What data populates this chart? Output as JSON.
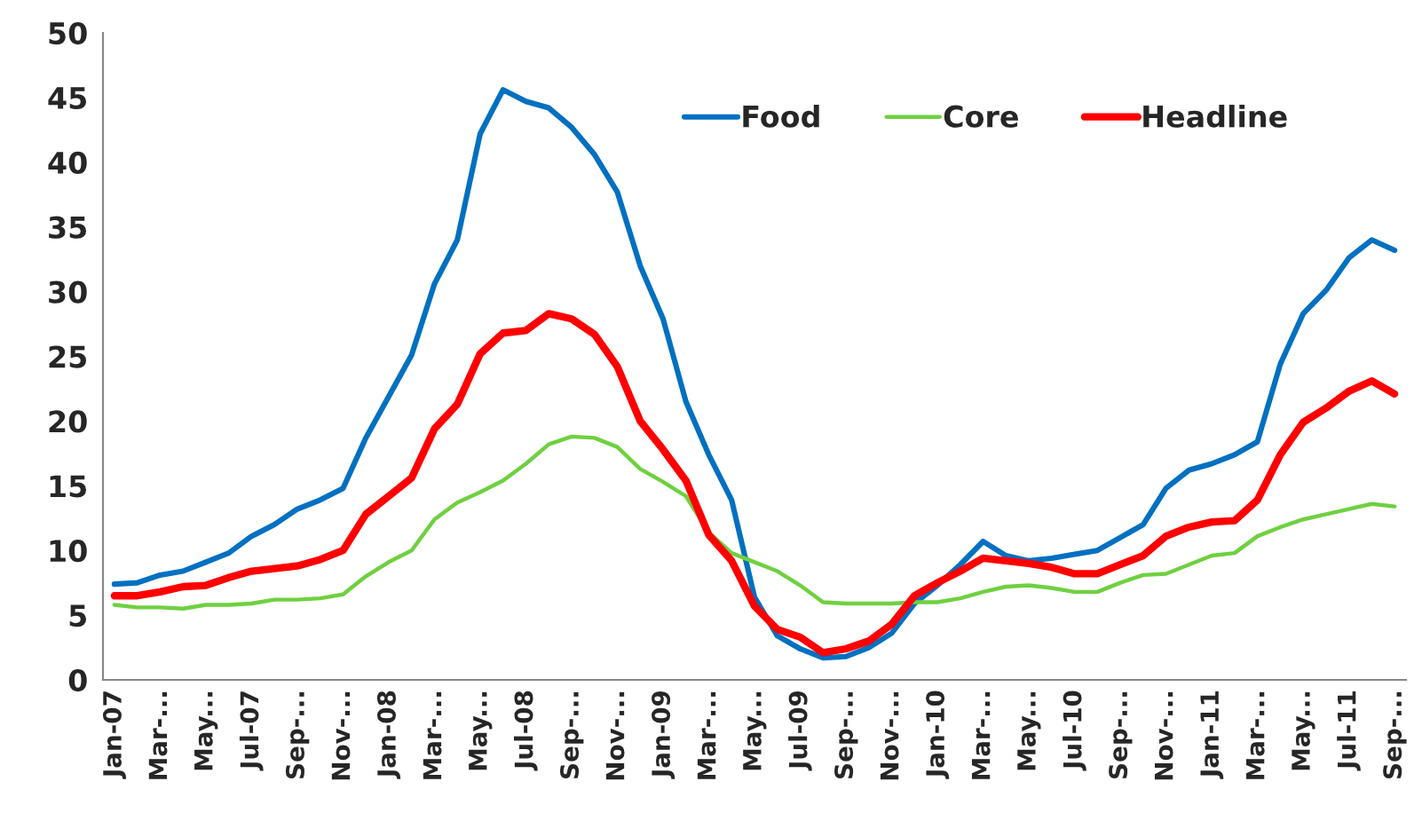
{
  "chart_data": {
    "type": "line",
    "categories": [
      "Jan-07",
      null,
      "Mar-...",
      null,
      "May...",
      null,
      "Jul-07",
      null,
      "Sep-...",
      null,
      "Nov-...",
      null,
      "Jan-08",
      null,
      "Mar-...",
      null,
      "May...",
      null,
      "Jul-08",
      null,
      "Sep-...",
      null,
      "Nov-...",
      null,
      "Jan-09",
      null,
      "Mar-...",
      null,
      "May...",
      null,
      "Jul-09",
      null,
      "Sep-...",
      null,
      "Nov-...",
      null,
      "Jan-10",
      null,
      "Mar-...",
      null,
      "May...",
      null,
      "Jul-10",
      null,
      "Sep-...",
      null,
      "Nov-...",
      null,
      "Jan-11",
      null,
      "Mar-...",
      null,
      "May...",
      null,
      "Jul-11",
      null,
      "Sep-..."
    ],
    "series": [
      {
        "name": "Food",
        "color": "#0070c0",
        "values": [
          7.4,
          7.5,
          8.1,
          8.4,
          9.1,
          9.8,
          11.1,
          12.0,
          13.2,
          13.9,
          14.8,
          18.7,
          21.9,
          25.1,
          30.6,
          34.0,
          42.2,
          45.6,
          44.7,
          44.2,
          42.7,
          40.6,
          37.7,
          32.0,
          27.9,
          21.5,
          17.4,
          13.9,
          6.4,
          3.4,
          2.4,
          1.7,
          1.8,
          2.5,
          3.6,
          5.9,
          7.3,
          8.9,
          10.7,
          9.6,
          9.2,
          9.4,
          9.7,
          10.0,
          11.0,
          12.0,
          14.8,
          16.2,
          16.7,
          17.4,
          18.4,
          24.4,
          28.3,
          30.1,
          32.6,
          34.0,
          33.2
        ]
      },
      {
        "name": "Core",
        "color": "#6fd040",
        "values": [
          5.8,
          5.6,
          5.6,
          5.5,
          5.8,
          5.8,
          5.9,
          6.2,
          6.2,
          6.3,
          6.6,
          8.0,
          9.1,
          10.0,
          12.4,
          13.7,
          14.5,
          15.4,
          16.7,
          18.2,
          18.8,
          18.7,
          18.0,
          16.3,
          15.3,
          14.2,
          11.4,
          9.8,
          9.1,
          8.4,
          7.3,
          6.0,
          5.9,
          5.9,
          5.9,
          6.0,
          6.0,
          6.3,
          6.8,
          7.2,
          7.3,
          7.1,
          6.8,
          6.8,
          7.5,
          8.1,
          8.2,
          8.9,
          9.6,
          9.8,
          11.1,
          11.8,
          12.4,
          12.8,
          13.2,
          13.6,
          13.4
        ]
      },
      {
        "name": "Headline",
        "color": "#ff0000",
        "values": [
          6.5,
          6.5,
          6.8,
          7.2,
          7.3,
          7.9,
          8.4,
          8.6,
          8.8,
          9.3,
          10.0,
          12.8,
          14.2,
          15.6,
          19.4,
          21.3,
          25.2,
          26.8,
          27.0,
          28.3,
          27.9,
          26.7,
          24.2,
          20.0,
          17.8,
          15.4,
          11.2,
          9.2,
          5.7,
          3.9,
          3.3,
          2.1,
          2.4,
          3.0,
          4.3,
          6.5,
          7.5,
          8.4,
          9.4,
          9.2,
          9.0,
          8.7,
          8.2,
          8.2,
          8.9,
          9.6,
          11.1,
          11.8,
          12.2,
          12.3,
          13.9,
          17.4,
          19.9,
          21.0,
          22.3,
          23.1,
          22.1
        ]
      }
    ],
    "ylim": [
      0,
      50
    ],
    "yticks": [
      0,
      5,
      10,
      15,
      20,
      25,
      30,
      35,
      40,
      45,
      50
    ],
    "legend": "top right",
    "line_style": "solid"
  }
}
